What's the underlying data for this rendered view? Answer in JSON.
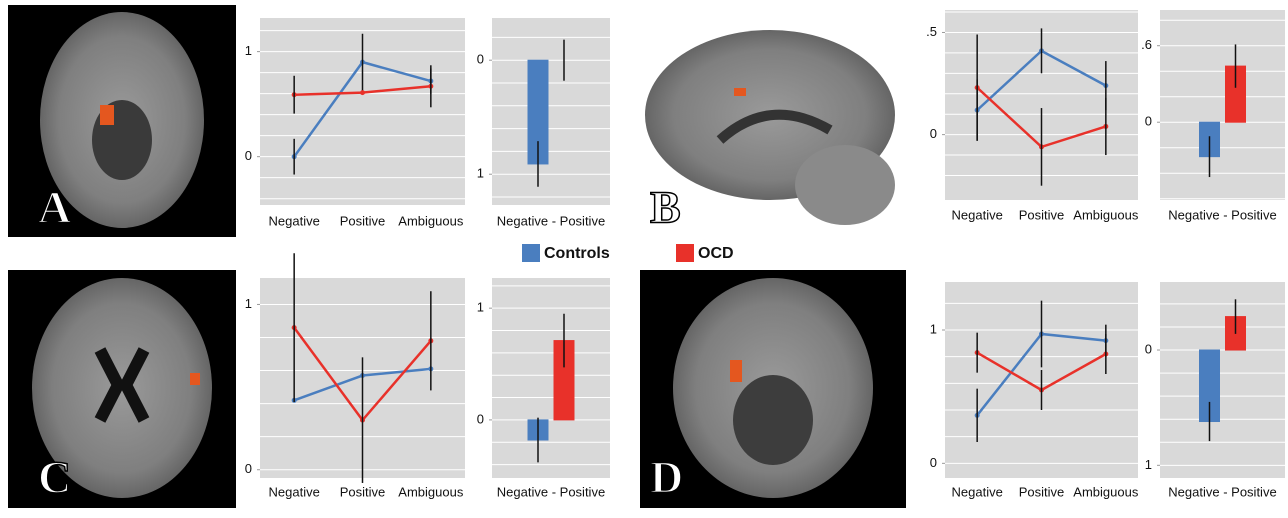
{
  "panels": [
    "A",
    "B",
    "C",
    "D"
  ],
  "legend": [
    {
      "name": "Controls",
      "color": "#4a7ebf"
    },
    {
      "name": "OCD",
      "color": "#e8312a"
    }
  ],
  "chart_data": [
    {
      "type": "line",
      "categories": [
        "Negative",
        "Positive",
        "Ambiguous"
      ],
      "series": [
        {
          "values": [
            0.0,
            0.9,
            0.72
          ],
          "errors": [
            0.17,
            0.27,
            0.12
          ]
        },
        {
          "values": [
            0.59,
            0.61,
            0.67
          ],
          "errors": [
            0.18,
            null,
            0.2
          ]
        }
      ],
      "ylim": [
        -0.46,
        1.32
      ],
      "yticks": [
        0,
        1
      ],
      "ygrid": [
        -0.4,
        -0.2,
        0,
        0.2,
        0.4,
        0.6,
        0.8,
        1,
        1.2
      ]
    },
    {
      "type": "bar",
      "categories": [
        "Negative - Positive"
      ],
      "series": [
        {
          "values": [
            0.91
          ],
          "errors": [
            0.2
          ]
        },
        {
          "values": [
            0.0
          ],
          "errors": [
            0.18
          ]
        }
      ],
      "ylim": [
        1.27,
        -0.37
      ],
      "yticks": [
        0,
        1
      ],
      "ygrid": [
        -0.2,
        0,
        0.2,
        0.4,
        0.6,
        0.8,
        1,
        1.2
      ]
    },
    {
      "type": "line",
      "categories": [
        "Negative",
        "Positive",
        "Ambiguous"
      ],
      "series": [
        {
          "values": [
            0.12,
            0.41,
            0.24
          ],
          "errors": [
            0.15,
            0.11,
            0.12
          ]
        },
        {
          "values": [
            0.23,
            -0.06,
            0.04
          ],
          "errors": [
            0.26,
            0.19,
            0.14
          ]
        }
      ],
      "ylim": [
        -0.32,
        0.61
      ],
      "yticks": [
        {
          "value": 0.5,
          "label": ".5"
        },
        0
      ],
      "ygrid": [
        -0.2,
        -0.1,
        0,
        0.1,
        0.2,
        0.3,
        0.4,
        0.5,
        0.6
      ]
    },
    {
      "type": "bar",
      "categories": [
        "Negative - Positive"
      ],
      "series": [
        {
          "values": [
            -0.27
          ],
          "errors": [
            0.16
          ]
        },
        {
          "values": [
            0.44
          ],
          "errors": [
            0.17
          ]
        }
      ],
      "ylim": [
        -0.61,
        0.88
      ],
      "yticks": [
        {
          "value": 0.6,
          "label": ".6"
        },
        0
      ],
      "ygrid": [
        -0.6,
        -0.4,
        -0.2,
        0,
        0.2,
        0.4,
        0.6,
        0.8
      ]
    },
    {
      "type": "line",
      "categories": [
        "Negative",
        "Positive",
        "Ambiguous"
      ],
      "series": [
        {
          "values": [
            0.42,
            0.57,
            0.61
          ],
          "errors": [
            null,
            null,
            null
          ]
        },
        {
          "values": [
            0.86,
            0.3,
            0.78
          ],
          "errors": [
            0.45,
            0.38,
            0.3
          ]
        }
      ],
      "ylim": [
        -0.05,
        1.16
      ],
      "yticks": [
        0,
        1
      ],
      "ygrid": [
        0,
        0.2,
        0.4,
        0.6,
        0.8,
        1
      ]
    },
    {
      "type": "bar",
      "categories": [
        "Negative - Positive"
      ],
      "series": [
        {
          "values": [
            -0.18
          ],
          "errors": [
            0.2
          ]
        },
        {
          "values": [
            0.71
          ],
          "errors": [
            0.24
          ]
        }
      ],
      "ylim": [
        -0.52,
        1.27
      ],
      "yticks": [
        0,
        1
      ],
      "ygrid": [
        -0.4,
        -0.2,
        0,
        0.2,
        0.4,
        0.6,
        0.8,
        1,
        1.2
      ]
    },
    {
      "type": "line",
      "categories": [
        "Negative",
        "Positive",
        "Ambiguous"
      ],
      "series": [
        {
          "values": [
            0.36,
            0.97,
            0.92
          ],
          "errors": [
            0.2,
            0.25,
            0.12
          ]
        },
        {
          "values": [
            0.83,
            0.55,
            0.82
          ],
          "errors": [
            0.15,
            0.15,
            0.15
          ]
        }
      ],
      "ylim": [
        -0.11,
        1.36
      ],
      "yticks": [
        0,
        1
      ],
      "ygrid": [
        0,
        0.2,
        0.4,
        0.6,
        0.8,
        1,
        1.2
      ]
    },
    {
      "type": "bar",
      "categories": [
        "Negative - Positive"
      ],
      "series": [
        {
          "values": [
            0.62
          ],
          "errors": [
            0.17
          ]
        },
        {
          "values": [
            -0.29
          ],
          "errors": [
            0.15
          ]
        }
      ],
      "ylim": [
        1.11,
        -0.59
      ],
      "yticks": [
        0,
        1
      ],
      "ygrid": [
        -0.4,
        -0.2,
        0,
        0.2,
        0.4,
        0.6,
        0.8,
        1
      ]
    }
  ]
}
